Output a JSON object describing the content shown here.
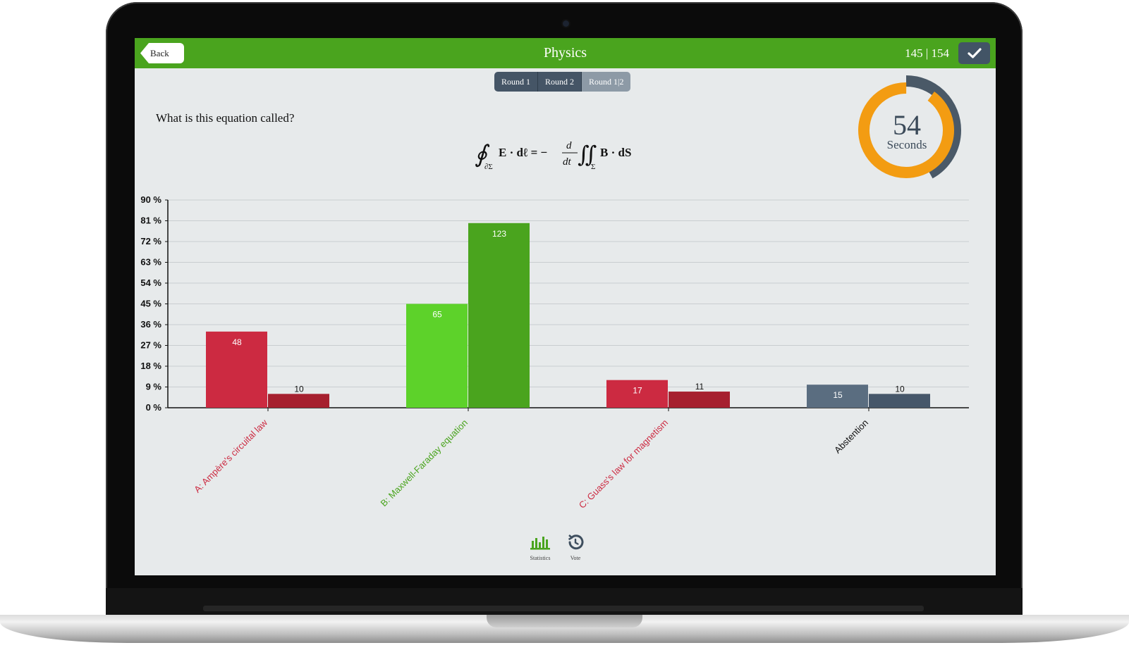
{
  "header": {
    "back_label": "Back",
    "title": "Physics",
    "counter": "145 | 154",
    "confirm_icon": "check-icon"
  },
  "rounds": [
    {
      "label": "Round 1",
      "active": false
    },
    {
      "label": "Round 2",
      "active": false
    },
    {
      "label": "Round 1|2",
      "active": true
    }
  ],
  "question": {
    "text": "What is this equation called?",
    "equation_parts": {
      "contour_sub": "∂Σ",
      "lhs": "E · dℓ = −",
      "frac_num": "d",
      "frac_den": "dt",
      "surface_sub": "Σ",
      "rhs": "B · dS"
    }
  },
  "timer": {
    "value": "54",
    "unit": "Seconds",
    "colors": {
      "remaining": "#f39c12",
      "elapsed": "#4a5967"
    }
  },
  "chart_data": {
    "type": "bar",
    "yticks": [
      "90 %",
      "81 %",
      "72 %",
      "63 %",
      "54 %",
      "45 %",
      "36 %",
      "27 %",
      "18 %",
      "9 %",
      "0 %"
    ],
    "ylim": [
      0,
      90
    ],
    "categories": [
      "A: Ampère's circuital law",
      "B: Maxwell-Faraday equation",
      "C: Guass's law for magnetism",
      "Abstention"
    ],
    "category_colors": [
      "#cc2a41",
      "#4aa41e",
      "#cc2a41",
      "#111111"
    ],
    "series": [
      {
        "values": [
          33,
          45,
          12,
          10
        ],
        "labels": [
          "48",
          "65",
          "17",
          "15"
        ],
        "colors": [
          "#cc2a41",
          "#5dd22a",
          "#cc2a41",
          "#5a6d80"
        ]
      },
      {
        "values": [
          6,
          80,
          7,
          6
        ],
        "labels": [
          "10",
          "123",
          "11",
          "10"
        ],
        "colors": [
          "#a6202f",
          "#4aa41e",
          "#a6202f",
          "#46576a"
        ]
      }
    ],
    "grid": true
  },
  "footer": {
    "statistics_label": "Statistics",
    "statistics_icon": "bar-chart-icon",
    "vote_label": "Vote",
    "vote_icon": "history-icon"
  }
}
